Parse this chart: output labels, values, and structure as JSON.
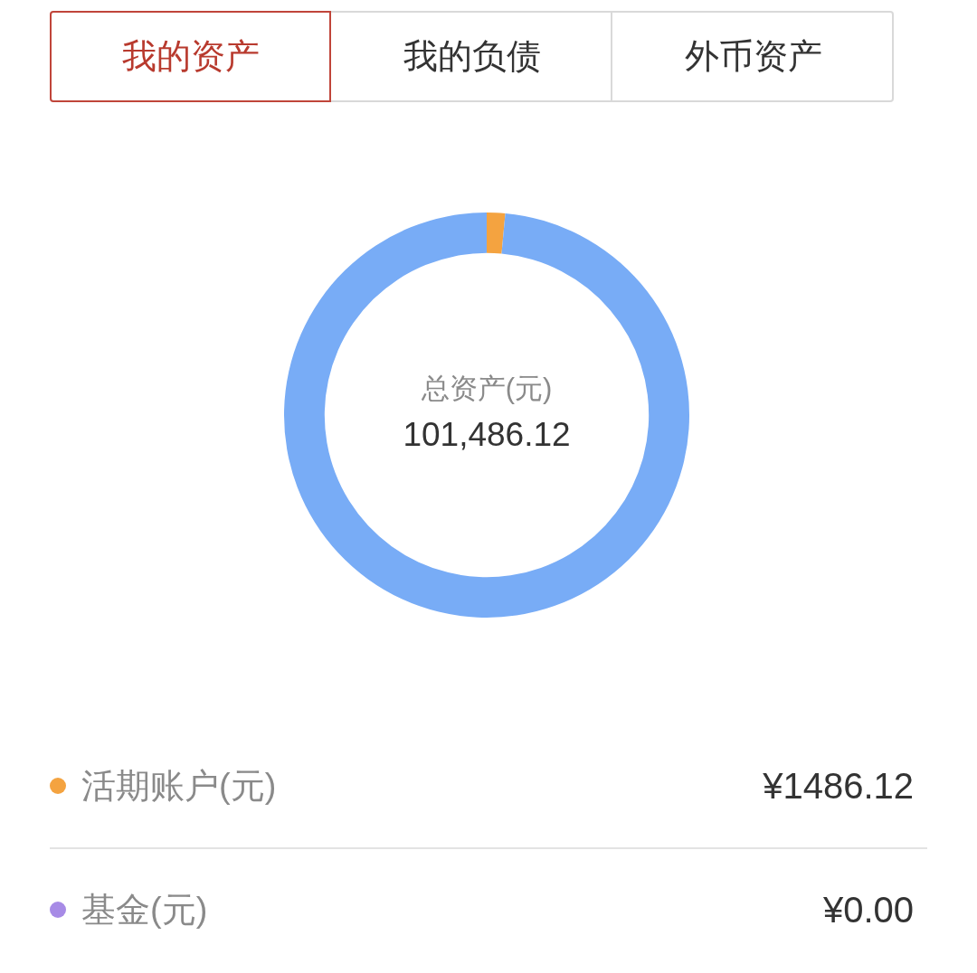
{
  "chart_data": {
    "type": "donut",
    "title": "总资产(元)",
    "subtitle": "101,486.12",
    "annotations": [
      "我的资产",
      "我的负债",
      "外币资产"
    ],
    "categories": [
      "活期账户(元)",
      "基金(元)",
      null
    ],
    "values": [
      1486.12,
      0,
      100000
    ],
    "colors": [
      "#f4a340",
      "#a78be6",
      "#78acf6"
    ],
    "value_labels": [
      "¥1486.12",
      "¥0.00",
      null
    ],
    "legend": "bottom"
  }
}
